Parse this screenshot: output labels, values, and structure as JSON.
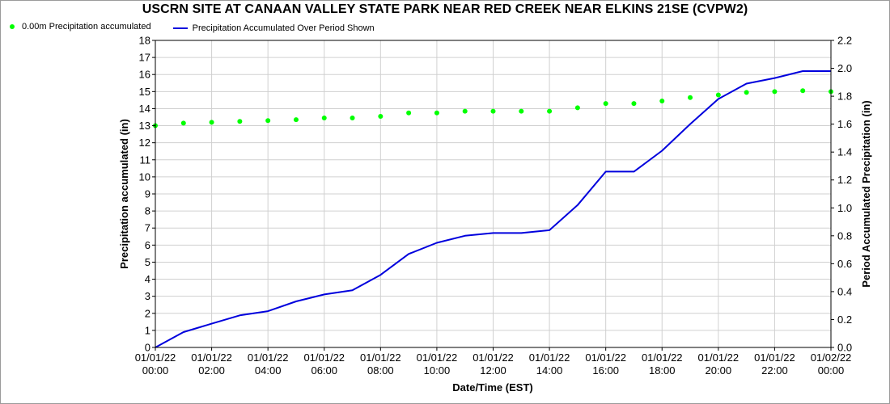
{
  "colors": {
    "points": "#00ff00",
    "line": "#0000dd",
    "grid": "#d0d0d0",
    "axis": "#000000"
  },
  "chart_data": {
    "type": "line",
    "title": "USCRN SITE AT CANAAN VALLEY STATE PARK NEAR RED CREEK NEAR ELKINS 21SE (CVPW2)",
    "xlabel": "Date/Time (EST)",
    "ylabel_left": "Precipitation accumulated (in)",
    "ylabel_right": "Period Accumulated Precipitation (in)",
    "ylim_left": [
      0,
      18
    ],
    "ylim_right": [
      0,
      2.2
    ],
    "grid": true,
    "legend_position": "top-left",
    "x_hours": [
      0,
      24
    ],
    "x_tick_labels": [
      [
        "01/01/22",
        "00:00"
      ],
      [
        "01/01/22",
        "02:00"
      ],
      [
        "01/01/22",
        "04:00"
      ],
      [
        "01/01/22",
        "06:00"
      ],
      [
        "01/01/22",
        "08:00"
      ],
      [
        "01/01/22",
        "10:00"
      ],
      [
        "01/01/22",
        "12:00"
      ],
      [
        "01/01/22",
        "14:00"
      ],
      [
        "01/01/22",
        "16:00"
      ],
      [
        "01/01/22",
        "18:00"
      ],
      [
        "01/01/22",
        "20:00"
      ],
      [
        "01/01/22",
        "22:00"
      ],
      [
        "01/02/22",
        "00:00"
      ]
    ],
    "y_left_ticks": [
      "0",
      "1",
      "2",
      "3",
      "4",
      "5",
      "6",
      "7",
      "8",
      "9",
      "10",
      "11",
      "12",
      "13",
      "14",
      "15",
      "16",
      "17",
      "18"
    ],
    "y_right_ticks": [
      "0.0",
      "0.2",
      "0.4",
      "0.6",
      "0.8",
      "1.0",
      "1.2",
      "1.4",
      "1.6",
      "1.8",
      "2.0",
      "2.2"
    ],
    "series": [
      {
        "name": "0.00m Precipitation accumulated",
        "style": "points",
        "axis": "left",
        "x": [
          0,
          1,
          2,
          3,
          4,
          5,
          6,
          7,
          8,
          9,
          10,
          11,
          12,
          13,
          14,
          15,
          16,
          17,
          18,
          19,
          20,
          21,
          22,
          23,
          24
        ],
        "values": [
          13.0,
          13.15,
          13.2,
          13.25,
          13.3,
          13.35,
          13.45,
          13.45,
          13.55,
          13.75,
          13.75,
          13.85,
          13.85,
          13.85,
          13.85,
          14.05,
          14.3,
          14.3,
          14.45,
          14.65,
          14.8,
          14.95,
          15.0,
          15.05,
          15.0
        ]
      },
      {
        "name": "Precipitation Accumulated Over Period Shown",
        "style": "line",
        "axis": "right",
        "x": [
          0,
          1,
          2,
          3,
          4,
          5,
          6,
          7,
          8,
          9,
          10,
          11,
          12,
          13,
          14,
          15,
          16,
          17,
          18,
          19,
          20,
          21,
          22,
          23,
          24
        ],
        "values": [
          0.0,
          0.11,
          0.17,
          0.23,
          0.26,
          0.33,
          0.38,
          0.41,
          0.52,
          0.67,
          0.75,
          0.8,
          0.82,
          0.82,
          0.84,
          1.02,
          1.26,
          1.26,
          1.41,
          1.6,
          1.78,
          1.89,
          1.93,
          1.98,
          1.98
        ]
      }
    ]
  }
}
